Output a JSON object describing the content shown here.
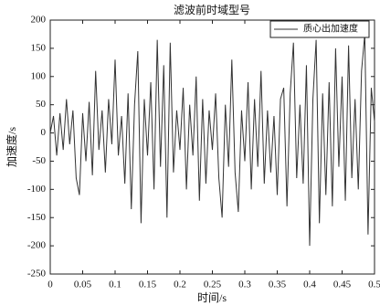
{
  "chart_data": {
    "type": "line",
    "title": "滤波前时域型号",
    "x_label": "时间/s",
    "y_label": "加速度/s",
    "legend": "upper right",
    "xlim": [
      0,
      0.5
    ],
    "xticks": [
      0,
      0.05,
      0.1,
      0.15,
      0.2,
      0.25,
      0.3,
      0.35,
      0.4,
      0.45,
      0.5
    ],
    "ylim": [
      -250,
      200
    ],
    "yticks": [
      -250,
      -200,
      -150,
      -100,
      -50,
      0,
      50,
      100,
      150,
      200
    ],
    "x": [
      0,
      0.005,
      0.01,
      0.015,
      0.02,
      0.025,
      0.03,
      0.035,
      0.04,
      0.045,
      0.05,
      0.055,
      0.06,
      0.065,
      0.07,
      0.075,
      0.08,
      0.085,
      0.09,
      0.095,
      0.1,
      0.105,
      0.11,
      0.115,
      0.12,
      0.125,
      0.13,
      0.135,
      0.14,
      0.145,
      0.15,
      0.155,
      0.16,
      0.165,
      0.17,
      0.175,
      0.18,
      0.185,
      0.19,
      0.195,
      0.2,
      0.205,
      0.21,
      0.215,
      0.22,
      0.225,
      0.23,
      0.235,
      0.24,
      0.245,
      0.25,
      0.255,
      0.26,
      0.265,
      0.27,
      0.275,
      0.28,
      0.285,
      0.29,
      0.295,
      0.3,
      0.305,
      0.31,
      0.315,
      0.32,
      0.325,
      0.33,
      0.335,
      0.34,
      0.345,
      0.35,
      0.355,
      0.36,
      0.365,
      0.37,
      0.375,
      0.38,
      0.385,
      0.39,
      0.395,
      0.4,
      0.405,
      0.41,
      0.415,
      0.42,
      0.425,
      0.43,
      0.435,
      0.44,
      0.445,
      0.45,
      0.455,
      0.46,
      0.465,
      0.47,
      0.475,
      0.48,
      0.485,
      0.49,
      0.495,
      0.5
    ],
    "series": [
      {
        "name": "质心出加速度",
        "color": "#333333",
        "values": [
          0,
          30,
          -40,
          35,
          -30,
          60,
          -20,
          40,
          -80,
          -110,
          35,
          -50,
          55,
          -75,
          110,
          -30,
          40,
          -70,
          60,
          -20,
          130,
          -40,
          30,
          -90,
          70,
          -135,
          50,
          145,
          -160,
          60,
          -40,
          90,
          -100,
          165,
          -60,
          120,
          -150,
          160,
          -70,
          40,
          -30,
          80,
          -100,
          50,
          -40,
          100,
          -120,
          60,
          -90,
          40,
          -30,
          70,
          -80,
          -150,
          50,
          -60,
          130,
          -70,
          -140,
          40,
          -50,
          90,
          -100,
          60,
          -60,
          110,
          -90,
          40,
          -70,
          30,
          -110,
          60,
          80,
          -130,
          70,
          160,
          -80,
          50,
          -90,
          120,
          -200,
          60,
          165,
          -160,
          70,
          -110,
          90,
          -130,
          150,
          -60,
          100,
          -120,
          155,
          -80,
          60,
          -100,
          110,
          175,
          -180,
          80,
          20
        ]
      }
    ]
  }
}
